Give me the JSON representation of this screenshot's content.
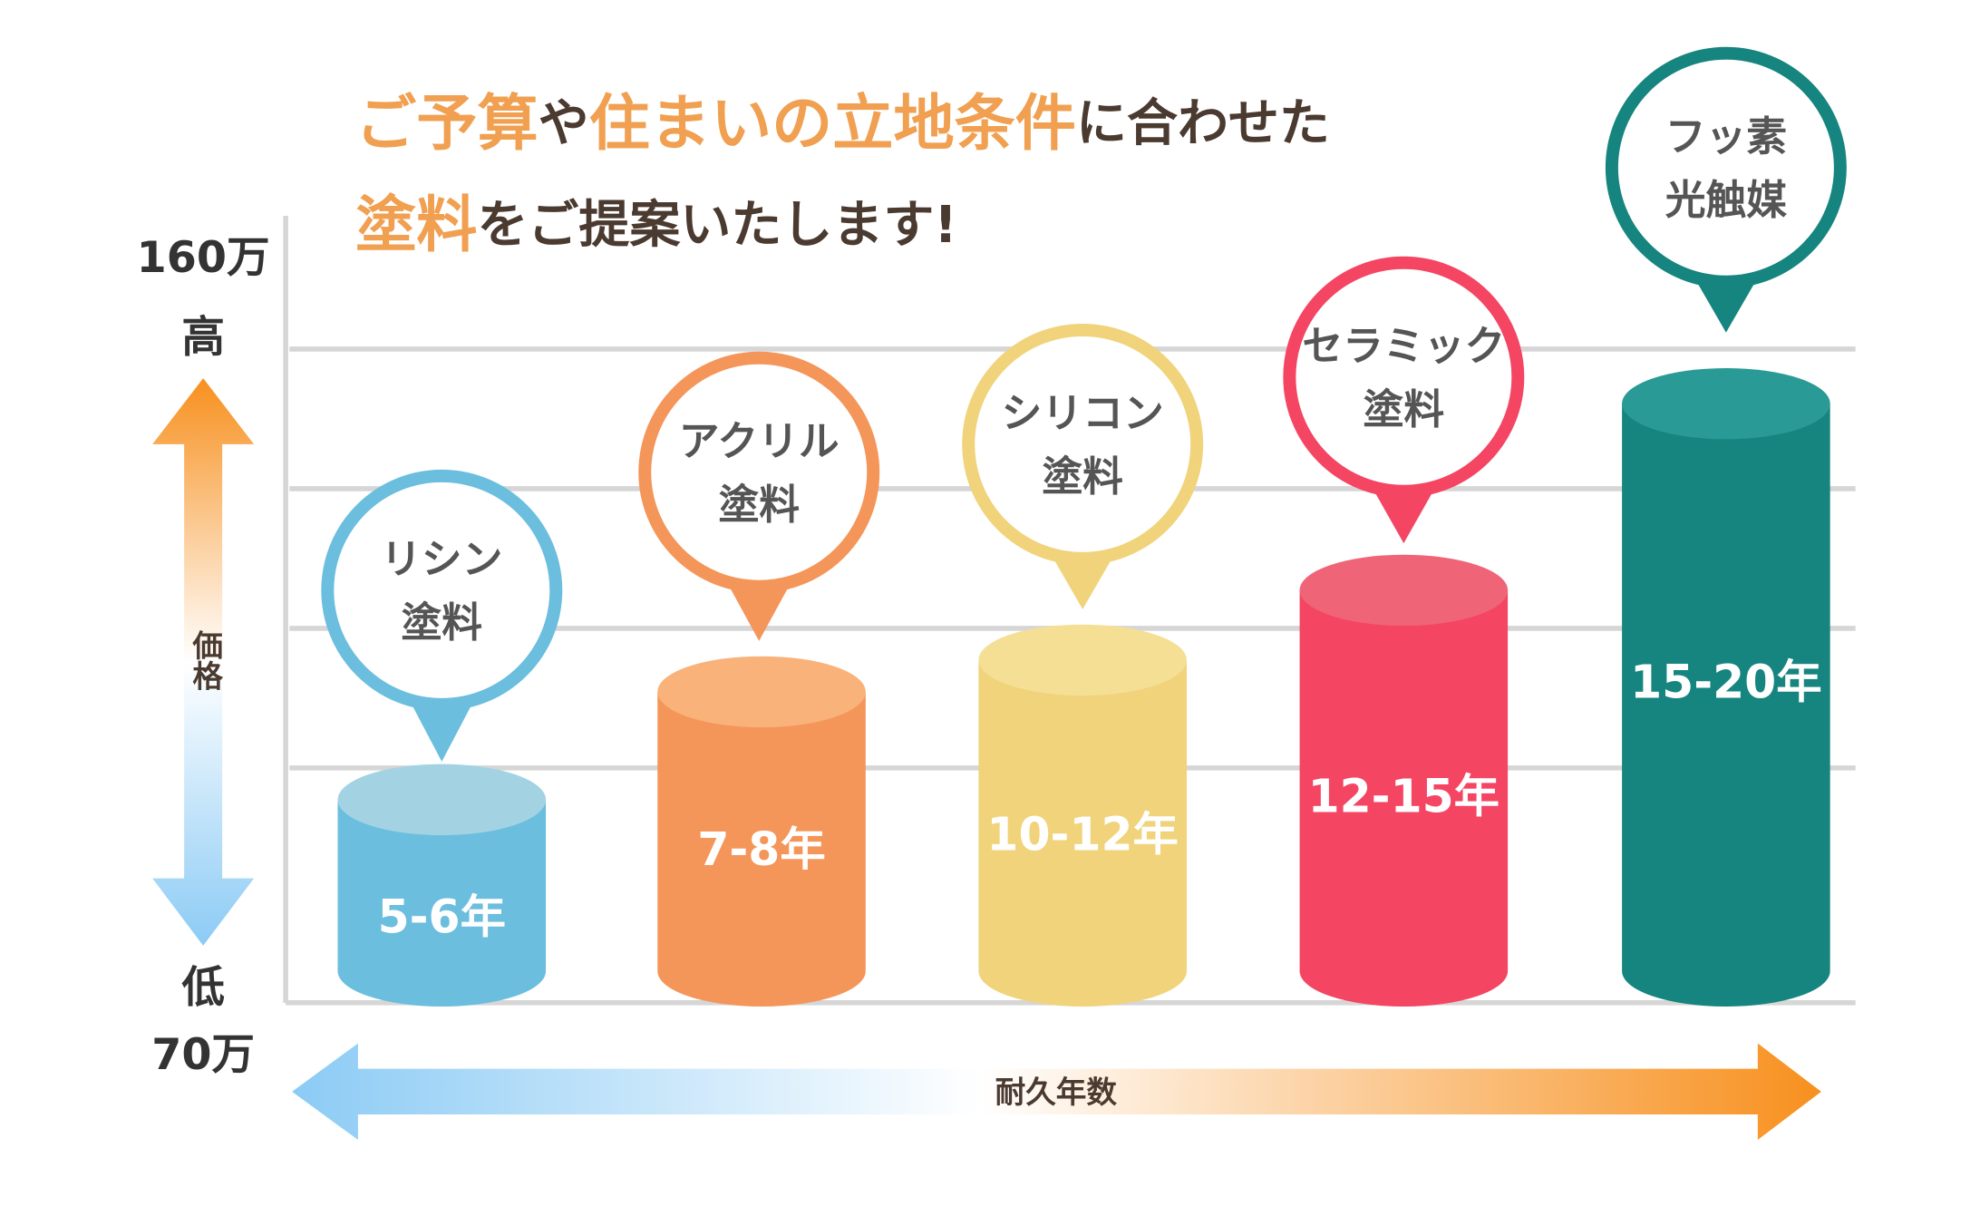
{
  "title": {
    "lines": [
      [
        {
          "text": "ご予算",
          "color": "#f0a050"
        },
        {
          "text": "や",
          "color": "#4a3a30"
        },
        {
          "text": "住まいの立地条件",
          "color": "#f0a050"
        },
        {
          "text": "に合わせた",
          "color": "#4a3a30"
        }
      ],
      [
        {
          "text": "塗料",
          "color": "#f0a050"
        },
        {
          "text": "をご提案いたします!",
          "color": "#4a3a30"
        }
      ]
    ]
  },
  "y_axis": {
    "top_value": "160万",
    "top_label": "高",
    "title": "価格",
    "bottom_label": "低",
    "bottom_value": "70万"
  },
  "x_axis": {
    "title": "耐久年数"
  },
  "items": [
    {
      "name_lines": [
        "リシン",
        "塗料"
      ],
      "years": "5-6年",
      "color": "#6bbede",
      "top_color": "#a3d3e3"
    },
    {
      "name_lines": [
        "アクリル",
        "塗料"
      ],
      "years": "7-8年",
      "color": "#f4965a",
      "top_color": "#f9b27a"
    },
    {
      "name_lines": [
        "シリコン",
        "塗料"
      ],
      "years": "10-12年",
      "color": "#f0d37a",
      "top_color": "#f5df94"
    },
    {
      "name_lines": [
        "セラミック",
        "塗料"
      ],
      "years": "12-15年",
      "color": "#f44563",
      "top_color": "#f06478"
    },
    {
      "name_lines": [
        "フッ素",
        "光触媒"
      ],
      "years": "15-20年",
      "color": "#16857f",
      "top_color": "#2a9a96"
    }
  ]
}
